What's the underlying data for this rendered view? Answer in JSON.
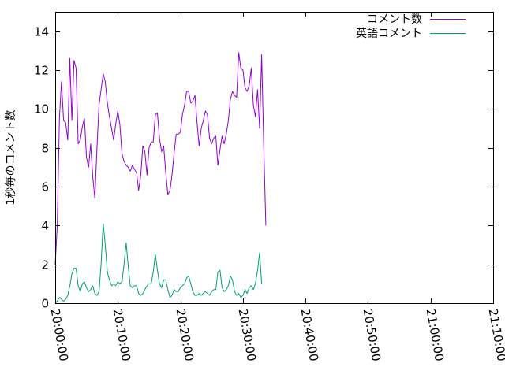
{
  "chart_data": {
    "type": "line",
    "ylabel": "1秒毎のコメント数",
    "xlabel": "",
    "ylim": [
      0,
      15
    ],
    "yticks": [
      0,
      2,
      4,
      6,
      8,
      10,
      12,
      14
    ],
    "yticks_text": [
      "0",
      "2",
      "4",
      "6",
      "8",
      "10",
      "12",
      "14"
    ],
    "xlim": [
      "20:00:00",
      "21:10:00"
    ],
    "xticks": [
      "20:00:00",
      "20:10:00",
      "20:20:00",
      "20:30:00",
      "20:40:00",
      "20:50:00",
      "21:00:00",
      "21:10:00"
    ],
    "grid": false,
    "legend_position": "top-right",
    "series": [
      {
        "name": "コメント数",
        "color": "#9400d3",
        "points": [
          [
            "20:00:00",
            2.0
          ],
          [
            "20:00:20",
            4.0
          ],
          [
            "20:00:40",
            9.5
          ],
          [
            "20:01:00",
            11.4
          ],
          [
            "20:01:20",
            9.4
          ],
          [
            "20:01:40",
            9.3
          ],
          [
            "20:02:00",
            8.4
          ],
          [
            "20:02:20",
            12.6
          ],
          [
            "20:02:40",
            9.4
          ],
          [
            "20:03:00",
            12.5
          ],
          [
            "20:03:20",
            12.1
          ],
          [
            "20:03:40",
            8.2
          ],
          [
            "20:04:00",
            8.4
          ],
          [
            "20:04:20",
            9.1
          ],
          [
            "20:04:40",
            9.5
          ],
          [
            "20:05:00",
            7.5
          ],
          [
            "20:05:20",
            7.0
          ],
          [
            "20:05:40",
            8.2
          ],
          [
            "20:06:00",
            6.5
          ],
          [
            "20:06:20",
            5.4
          ],
          [
            "20:06:40",
            8.0
          ],
          [
            "20:07:00",
            10.2
          ],
          [
            "20:07:20",
            11.0
          ],
          [
            "20:07:40",
            11.8
          ],
          [
            "20:08:00",
            11.4
          ],
          [
            "20:08:20",
            10.3
          ],
          [
            "20:08:40",
            9.6
          ],
          [
            "20:09:00",
            9.0
          ],
          [
            "20:09:20",
            8.4
          ],
          [
            "20:09:40",
            9.2
          ],
          [
            "20:10:00",
            9.9
          ],
          [
            "20:10:20",
            9.2
          ],
          [
            "20:10:40",
            7.7
          ],
          [
            "20:11:00",
            7.3
          ],
          [
            "20:11:20",
            7.1
          ],
          [
            "20:11:40",
            7.0
          ],
          [
            "20:12:00",
            6.8
          ],
          [
            "20:12:20",
            7.1
          ],
          [
            "20:12:40",
            6.9
          ],
          [
            "20:13:00",
            6.7
          ],
          [
            "20:13:20",
            5.8
          ],
          [
            "20:13:40",
            6.6
          ],
          [
            "20:14:00",
            8.1
          ],
          [
            "20:14:20",
            7.8
          ],
          [
            "20:14:40",
            6.6
          ],
          [
            "20:15:00",
            8.0
          ],
          [
            "20:15:20",
            8.3
          ],
          [
            "20:15:40",
            8.3
          ],
          [
            "20:16:00",
            9.7
          ],
          [
            "20:16:20",
            9.8
          ],
          [
            "20:16:40",
            8.5
          ],
          [
            "20:17:00",
            7.8
          ],
          [
            "20:17:20",
            8.1
          ],
          [
            "20:17:40",
            6.7
          ],
          [
            "20:18:00",
            5.6
          ],
          [
            "20:18:20",
            5.8
          ],
          [
            "20:18:40",
            6.6
          ],
          [
            "20:19:00",
            7.7
          ],
          [
            "20:19:20",
            8.7
          ],
          [
            "20:19:40",
            8.7
          ],
          [
            "20:20:00",
            8.8
          ],
          [
            "20:20:20",
            9.7
          ],
          [
            "20:20:40",
            10.2
          ],
          [
            "20:21:00",
            10.9
          ],
          [
            "20:21:20",
            10.9
          ],
          [
            "20:21:40",
            10.3
          ],
          [
            "20:22:00",
            10.4
          ],
          [
            "20:22:20",
            10.7
          ],
          [
            "20:22:40",
            9.3
          ],
          [
            "20:23:00",
            8.1
          ],
          [
            "20:23:20",
            9.0
          ],
          [
            "20:23:40",
            9.4
          ],
          [
            "20:24:00",
            9.9
          ],
          [
            "20:24:20",
            9.7
          ],
          [
            "20:24:40",
            8.5
          ],
          [
            "20:25:00",
            8.2
          ],
          [
            "20:25:20",
            8.5
          ],
          [
            "20:25:40",
            8.6
          ],
          [
            "20:26:00",
            7.1
          ],
          [
            "20:26:20",
            7.9
          ],
          [
            "20:26:40",
            8.6
          ],
          [
            "20:27:00",
            8.2
          ],
          [
            "20:27:20",
            8.7
          ],
          [
            "20:27:40",
            9.4
          ],
          [
            "20:28:00",
            10.5
          ],
          [
            "20:28:20",
            10.9
          ],
          [
            "20:28:40",
            10.7
          ],
          [
            "20:29:00",
            10.6
          ],
          [
            "20:29:20",
            12.9
          ],
          [
            "20:29:40",
            12.1
          ],
          [
            "20:30:00",
            12.0
          ],
          [
            "20:30:20",
            11.1
          ],
          [
            "20:30:40",
            10.9
          ],
          [
            "20:31:00",
            11.2
          ],
          [
            "20:31:20",
            12.1
          ],
          [
            "20:31:40",
            10.2
          ],
          [
            "20:32:00",
            9.6
          ],
          [
            "20:32:20",
            11.0
          ],
          [
            "20:32:40",
            9.0
          ],
          [
            "20:33:00",
            12.8
          ],
          [
            "20:33:20",
            8.0
          ],
          [
            "20:33:40",
            4.0
          ]
        ]
      },
      {
        "name": "英語コメント",
        "color": "#009e73",
        "points": [
          [
            "20:00:00",
            0.0
          ],
          [
            "20:00:20",
            0.1
          ],
          [
            "20:00:40",
            0.3
          ],
          [
            "20:01:00",
            0.2
          ],
          [
            "20:01:20",
            0.1
          ],
          [
            "20:01:40",
            0.2
          ],
          [
            "20:02:00",
            0.4
          ],
          [
            "20:02:20",
            0.9
          ],
          [
            "20:02:40",
            1.5
          ],
          [
            "20:03:00",
            1.8
          ],
          [
            "20:03:20",
            1.8
          ],
          [
            "20:03:40",
            0.9
          ],
          [
            "20:04:00",
            0.6
          ],
          [
            "20:04:20",
            1.0
          ],
          [
            "20:04:40",
            1.1
          ],
          [
            "20:05:00",
            0.8
          ],
          [
            "20:05:20",
            0.6
          ],
          [
            "20:05:40",
            0.7
          ],
          [
            "20:06:00",
            0.9
          ],
          [
            "20:06:20",
            0.5
          ],
          [
            "20:06:40",
            0.4
          ],
          [
            "20:07:00",
            0.6
          ],
          [
            "20:07:20",
            2.0
          ],
          [
            "20:07:40",
            4.1
          ],
          [
            "20:08:00",
            3.0
          ],
          [
            "20:08:20",
            1.6
          ],
          [
            "20:08:40",
            1.2
          ],
          [
            "20:09:00",
            0.9
          ],
          [
            "20:09:20",
            1.0
          ],
          [
            "20:09:40",
            0.9
          ],
          [
            "20:10:00",
            1.1
          ],
          [
            "20:10:20",
            1.0
          ],
          [
            "20:10:40",
            1.1
          ],
          [
            "20:11:00",
            2.0
          ],
          [
            "20:11:20",
            3.1
          ],
          [
            "20:11:40",
            1.9
          ],
          [
            "20:12:00",
            0.9
          ],
          [
            "20:12:20",
            0.8
          ],
          [
            "20:12:40",
            0.9
          ],
          [
            "20:13:00",
            0.9
          ],
          [
            "20:13:20",
            0.5
          ],
          [
            "20:13:40",
            0.4
          ],
          [
            "20:14:00",
            0.5
          ],
          [
            "20:14:20",
            0.7
          ],
          [
            "20:14:40",
            0.9
          ],
          [
            "20:15:00",
            1.0
          ],
          [
            "20:15:20",
            1.0
          ],
          [
            "20:15:40",
            1.6
          ],
          [
            "20:16:00",
            2.5
          ],
          [
            "20:16:20",
            1.7
          ],
          [
            "20:16:40",
            1.0
          ],
          [
            "20:17:00",
            0.8
          ],
          [
            "20:17:20",
            1.2
          ],
          [
            "20:17:40",
            1.2
          ],
          [
            "20:18:00",
            0.7
          ],
          [
            "20:18:20",
            0.3
          ],
          [
            "20:18:40",
            0.4
          ],
          [
            "20:19:00",
            0.7
          ],
          [
            "20:19:20",
            0.6
          ],
          [
            "20:19:40",
            0.6
          ],
          [
            "20:20:00",
            0.8
          ],
          [
            "20:20:20",
            0.9
          ],
          [
            "20:20:40",
            1.0
          ],
          [
            "20:21:00",
            1.3
          ],
          [
            "20:21:20",
            1.4
          ],
          [
            "20:21:40",
            1.0
          ],
          [
            "20:22:00",
            0.6
          ],
          [
            "20:22:20",
            0.4
          ],
          [
            "20:22:40",
            0.4
          ],
          [
            "20:23:00",
            0.5
          ],
          [
            "20:23:20",
            0.4
          ],
          [
            "20:23:40",
            0.5
          ],
          [
            "20:24:00",
            0.6
          ],
          [
            "20:24:20",
            0.5
          ],
          [
            "20:24:40",
            0.4
          ],
          [
            "20:25:00",
            0.6
          ],
          [
            "20:25:20",
            0.7
          ],
          [
            "20:25:40",
            0.7
          ],
          [
            "20:26:00",
            1.6
          ],
          [
            "20:26:20",
            1.7
          ],
          [
            "20:26:40",
            0.8
          ],
          [
            "20:27:00",
            0.6
          ],
          [
            "20:27:20",
            0.7
          ],
          [
            "20:27:40",
            0.9
          ],
          [
            "20:28:00",
            1.4
          ],
          [
            "20:28:20",
            1.2
          ],
          [
            "20:28:40",
            0.6
          ],
          [
            "20:29:00",
            0.4
          ],
          [
            "20:29:20",
            0.5
          ],
          [
            "20:29:40",
            0.3
          ],
          [
            "20:30:00",
            0.4
          ],
          [
            "20:30:20",
            0.7
          ],
          [
            "20:30:40",
            0.5
          ],
          [
            "20:31:00",
            0.8
          ],
          [
            "20:31:20",
            0.9
          ],
          [
            "20:31:40",
            0.7
          ],
          [
            "20:32:00",
            1.0
          ],
          [
            "20:32:20",
            1.7
          ],
          [
            "20:32:40",
            2.6
          ],
          [
            "20:33:00",
            1.0
          ]
        ]
      }
    ]
  }
}
